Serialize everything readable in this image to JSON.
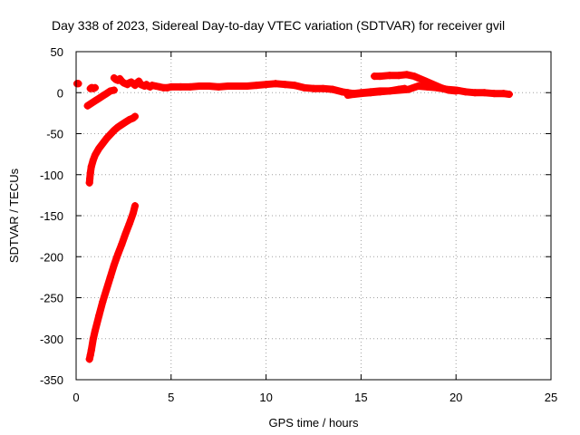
{
  "chart_data": {
    "type": "scatter",
    "title": "Day 338 of 2023, Sidereal Day-to-day VTEC variation (SDTVAR) for receiver gvil",
    "xlabel": "GPS time / hours",
    "ylabel": "SDTVAR / TECUs",
    "xlim": [
      0,
      25
    ],
    "ylim": [
      -350,
      50
    ],
    "xticks": [
      0,
      5,
      10,
      15,
      20,
      25
    ],
    "yticks": [
      50,
      0,
      -50,
      -100,
      -150,
      -200,
      -250,
      -300,
      -350
    ],
    "grid": true,
    "marker": "plus",
    "color": "#ff0000",
    "series": [
      {
        "x": [
          0.05,
          0.12
        ],
        "y": [
          11,
          11
        ]
      },
      {
        "x": [
          0.75,
          0.8,
          0.85,
          0.9,
          1.0
        ],
        "y": [
          5,
          6,
          6,
          5,
          6
        ]
      },
      {
        "x": [
          0.6,
          0.8,
          1.0,
          1.2,
          1.4,
          1.6,
          1.8,
          2.0
        ],
        "y": [
          -16,
          -13,
          -10,
          -7,
          -4,
          -1,
          2,
          3
        ]
      },
      {
        "x": [
          0.7,
          0.72,
          0.75,
          0.8,
          0.9,
          1.0,
          1.2,
          1.4,
          1.6,
          1.8,
          2.0,
          2.2,
          2.4,
          2.6,
          2.8,
          3.0,
          3.1
        ],
        "y": [
          -110,
          -105,
          -98,
          -90,
          -82,
          -76,
          -68,
          -62,
          -56,
          -51,
          -46,
          -42,
          -39,
          -36,
          -33,
          -31,
          -29
        ]
      },
      {
        "x": [
          0.7,
          0.75,
          0.8,
          0.9,
          1.0,
          1.2,
          1.4,
          1.6,
          1.8,
          2.0,
          2.2,
          2.4,
          2.6,
          2.8,
          3.0,
          3.1
        ],
        "y": [
          -325,
          -320,
          -314,
          -300,
          -290,
          -272,
          -255,
          -240,
          -225,
          -210,
          -197,
          -185,
          -172,
          -160,
          -147,
          -138
        ]
      },
      {
        "x": [
          2.0,
          2.1,
          2.2,
          2.3,
          2.4,
          2.5,
          2.6,
          2.7,
          2.8,
          2.9,
          3.0,
          3.1,
          3.2,
          3.3,
          3.4,
          3.5,
          3.6,
          3.7,
          3.8,
          3.9,
          4.0,
          4.2,
          4.4,
          4.6,
          4.8,
          5.0,
          5.5,
          6.0,
          6.5,
          7.0,
          7.5,
          8.0,
          8.5,
          9.0,
          9.5,
          10.0,
          10.5,
          11.0,
          11.5,
          12.0,
          12.5,
          13.0,
          13.5,
          14.0,
          14.3,
          14.6,
          15.0,
          15.5,
          16.0,
          16.5,
          17.0,
          17.5,
          18.0,
          18.5,
          19.0,
          19.5,
          20.0,
          20.5,
          21.0,
          21.5,
          22.0,
          22.5,
          22.8
        ],
        "y": [
          18,
          16,
          15,
          17,
          14,
          12,
          11,
          10,
          12,
          13,
          11,
          9,
          12,
          14,
          10,
          9,
          8,
          10,
          8,
          7,
          9,
          8,
          7,
          6,
          6,
          7,
          7,
          7,
          8,
          8,
          7,
          8,
          8,
          8,
          9,
          10,
          11,
          10,
          9,
          6,
          5,
          5,
          4,
          1,
          0,
          -1,
          0,
          1,
          2,
          2,
          3,
          4,
          8,
          7,
          6,
          4,
          3,
          1,
          0,
          0,
          -1,
          -1,
          -2
        ]
      },
      {
        "x": [
          14.3,
          14.6,
          15.0,
          15.5,
          16.0,
          16.5,
          17.0,
          17.3
        ],
        "y": [
          -3,
          -2,
          -1,
          0,
          1,
          2,
          4,
          5
        ]
      },
      {
        "x": [
          15.7,
          16.0,
          16.5,
          17.0,
          17.4,
          17.8,
          18.0,
          18.4,
          18.8,
          19.2,
          19.6,
          20.0
        ],
        "y": [
          20,
          20,
          21,
          21,
          22,
          20,
          18,
          14,
          10,
          6,
          3,
          2
        ]
      }
    ]
  }
}
